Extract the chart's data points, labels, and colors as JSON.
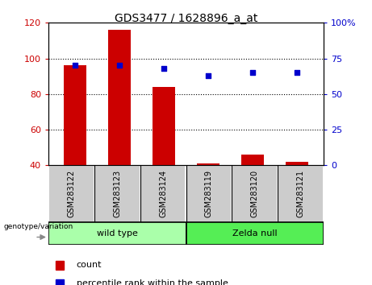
{
  "title": "GDS3477 / 1628896_a_at",
  "samples": [
    "GSM283122",
    "GSM283123",
    "GSM283124",
    "GSM283119",
    "GSM283120",
    "GSM283121"
  ],
  "count_values": [
    96,
    116,
    84,
    41,
    46,
    42
  ],
  "percentile_values": [
    70,
    70,
    68,
    63,
    65,
    65
  ],
  "ylim_left": [
    40,
    120
  ],
  "ylim_right": [
    0,
    100
  ],
  "yticks_left": [
    40,
    60,
    80,
    100,
    120
  ],
  "yticks_right": [
    0,
    25,
    50,
    75,
    100
  ],
  "ytick_labels_right": [
    "0",
    "25",
    "50",
    "75",
    "100%"
  ],
  "bar_color": "#cc0000",
  "dot_color": "#0000cc",
  "bg_plot": "#ffffff",
  "group1_label": "wild type",
  "group2_label": "Zelda null",
  "group1_color": "#aaffaa",
  "group2_color": "#55ee55",
  "group_label": "genotype/variation",
  "legend_count_label": "count",
  "legend_pct_label": "percentile rank within the sample",
  "bar_bottom": 40,
  "bar_width": 0.5,
  "x_positions": [
    0,
    1,
    2,
    3,
    4,
    5
  ],
  "left_tick_color": "#cc0000",
  "right_tick_color": "#0000cc",
  "grid_ticks": [
    60,
    80,
    100
  ],
  "n_wild": 3,
  "n_zelda": 3
}
